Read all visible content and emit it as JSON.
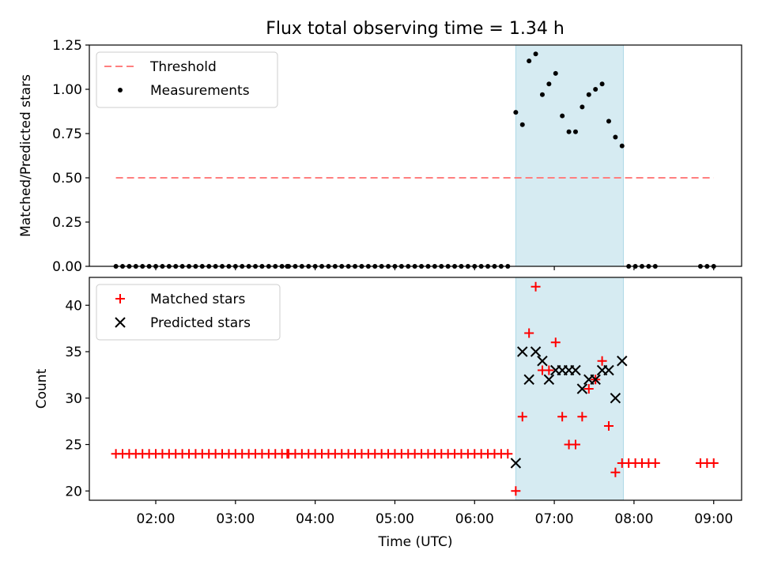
{
  "chart_data": {
    "title": "Flux total observing time = 1.34 h",
    "x_axis": {
      "label": "Time (UTC)",
      "ticks": [
        "02:00",
        "03:00",
        "04:00",
        "05:00",
        "06:00",
        "07:00",
        "08:00",
        "09:00"
      ],
      "range": [
        "01:10",
        "09:21"
      ]
    },
    "highlight_span": [
      "06:31",
      "07:52"
    ],
    "highlight_color": "#add8e6",
    "charts": [
      {
        "type": "scatter",
        "ylabel": "Matched/Predicted stars",
        "ylim": [
          0,
          1.25
        ],
        "yticks": [
          "0.00",
          "0.25",
          "0.50",
          "0.75",
          "1.00",
          "1.25"
        ],
        "legend_position": "top-left",
        "threshold": {
          "name": "Threshold",
          "value": 0.5,
          "x_range": [
            "01:30",
            "09:00"
          ],
          "color": "#ff7f7f",
          "style": "dashed"
        },
        "series": [
          {
            "name": "Measurements",
            "color": "#000000",
            "marker": "dot",
            "points": [
              [
                "01:30",
                0
              ],
              [
                "01:35",
                0
              ],
              [
                "01:40",
                0
              ],
              [
                "01:45",
                0
              ],
              [
                "01:50",
                0
              ],
              [
                "01:55",
                0
              ],
              [
                "02:00",
                0
              ],
              [
                "02:05",
                0
              ],
              [
                "02:10",
                0
              ],
              [
                "02:15",
                0
              ],
              [
                "02:20",
                0
              ],
              [
                "02:25",
                0
              ],
              [
                "02:30",
                0
              ],
              [
                "02:35",
                0
              ],
              [
                "02:40",
                0
              ],
              [
                "02:45",
                0
              ],
              [
                "02:50",
                0
              ],
              [
                "02:55",
                0
              ],
              [
                "03:00",
                0
              ],
              [
                "03:05",
                0
              ],
              [
                "03:10",
                0
              ],
              [
                "03:15",
                0
              ],
              [
                "03:20",
                0
              ],
              [
                "03:25",
                0
              ],
              [
                "03:30",
                0
              ],
              [
                "03:35",
                0
              ],
              [
                "03:39",
                0
              ],
              [
                "03:40",
                0
              ],
              [
                "03:45",
                0
              ],
              [
                "03:50",
                0
              ],
              [
                "03:55",
                0
              ],
              [
                "04:00",
                0
              ],
              [
                "04:05",
                0
              ],
              [
                "04:10",
                0
              ],
              [
                "04:15",
                0
              ],
              [
                "04:20",
                0
              ],
              [
                "04:25",
                0
              ],
              [
                "04:30",
                0
              ],
              [
                "04:35",
                0
              ],
              [
                "04:40",
                0
              ],
              [
                "04:45",
                0
              ],
              [
                "04:50",
                0
              ],
              [
                "04:55",
                0
              ],
              [
                "05:00",
                0
              ],
              [
                "05:05",
                0
              ],
              [
                "05:10",
                0
              ],
              [
                "05:15",
                0
              ],
              [
                "05:20",
                0
              ],
              [
                "05:25",
                0
              ],
              [
                "05:30",
                0
              ],
              [
                "05:35",
                0
              ],
              [
                "05:40",
                0
              ],
              [
                "05:45",
                0
              ],
              [
                "05:50",
                0
              ],
              [
                "05:55",
                0
              ],
              [
                "06:00",
                0
              ],
              [
                "06:05",
                0
              ],
              [
                "06:10",
                0
              ],
              [
                "06:15",
                0
              ],
              [
                "06:20",
                0
              ],
              [
                "06:25",
                0
              ],
              [
                "06:31",
                0.87
              ],
              [
                "06:36",
                0.8
              ],
              [
                "06:41",
                1.16
              ],
              [
                "06:46",
                1.2
              ],
              [
                "06:51",
                0.97
              ],
              [
                "06:56",
                1.03
              ],
              [
                "07:01",
                1.09
              ],
              [
                "07:06",
                0.85
              ],
              [
                "07:11",
                0.76
              ],
              [
                "07:16",
                0.76
              ],
              [
                "07:21",
                0.9
              ],
              [
                "07:26",
                0.97
              ],
              [
                "07:31",
                1.0
              ],
              [
                "07:36",
                1.03
              ],
              [
                "07:41",
                0.82
              ],
              [
                "07:46",
                0.73
              ],
              [
                "07:51",
                0.68
              ],
              [
                "07:56",
                0
              ],
              [
                "08:01",
                0
              ],
              [
                "08:06",
                0
              ],
              [
                "08:11",
                0
              ],
              [
                "08:16",
                0
              ],
              [
                "08:50",
                0
              ],
              [
                "08:55",
                0
              ],
              [
                "09:00",
                0
              ]
            ]
          }
        ]
      },
      {
        "type": "scatter",
        "ylabel": "Count",
        "ylim": [
          19,
          43
        ],
        "yticks": [
          "20",
          "25",
          "30",
          "35",
          "40"
        ],
        "legend_position": "top-left",
        "series": [
          {
            "name": "Matched stars",
            "color": "#ff0000",
            "marker": "plus",
            "points": [
              [
                "01:30",
                24
              ],
              [
                "01:35",
                24
              ],
              [
                "01:40",
                24
              ],
              [
                "01:45",
                24
              ],
              [
                "01:50",
                24
              ],
              [
                "01:55",
                24
              ],
              [
                "02:00",
                24
              ],
              [
                "02:05",
                24
              ],
              [
                "02:10",
                24
              ],
              [
                "02:15",
                24
              ],
              [
                "02:20",
                24
              ],
              [
                "02:25",
                24
              ],
              [
                "02:30",
                24
              ],
              [
                "02:35",
                24
              ],
              [
                "02:40",
                24
              ],
              [
                "02:45",
                24
              ],
              [
                "02:50",
                24
              ],
              [
                "02:55",
                24
              ],
              [
                "03:00",
                24
              ],
              [
                "03:05",
                24
              ],
              [
                "03:10",
                24
              ],
              [
                "03:15",
                24
              ],
              [
                "03:20",
                24
              ],
              [
                "03:25",
                24
              ],
              [
                "03:30",
                24
              ],
              [
                "03:35",
                24
              ],
              [
                "03:39",
                24
              ],
              [
                "03:40",
                24
              ],
              [
                "03:45",
                24
              ],
              [
                "03:50",
                24
              ],
              [
                "03:55",
                24
              ],
              [
                "04:00",
                24
              ],
              [
                "04:05",
                24
              ],
              [
                "04:10",
                24
              ],
              [
                "04:15",
                24
              ],
              [
                "04:20",
                24
              ],
              [
                "04:25",
                24
              ],
              [
                "04:30",
                24
              ],
              [
                "04:35",
                24
              ],
              [
                "04:40",
                24
              ],
              [
                "04:45",
                24
              ],
              [
                "04:50",
                24
              ],
              [
                "04:55",
                24
              ],
              [
                "05:00",
                24
              ],
              [
                "05:05",
                24
              ],
              [
                "05:10",
                24
              ],
              [
                "05:15",
                24
              ],
              [
                "05:20",
                24
              ],
              [
                "05:25",
                24
              ],
              [
                "05:30",
                24
              ],
              [
                "05:35",
                24
              ],
              [
                "05:40",
                24
              ],
              [
                "05:45",
                24
              ],
              [
                "05:50",
                24
              ],
              [
                "05:55",
                24
              ],
              [
                "06:00",
                24
              ],
              [
                "06:05",
                24
              ],
              [
                "06:10",
                24
              ],
              [
                "06:15",
                24
              ],
              [
                "06:20",
                24
              ],
              [
                "06:25",
                24
              ],
              [
                "06:31",
                20
              ],
              [
                "06:36",
                28
              ],
              [
                "06:41",
                37
              ],
              [
                "06:46",
                42
              ],
              [
                "06:51",
                33
              ],
              [
                "06:56",
                33
              ],
              [
                "07:01",
                36
              ],
              [
                "07:06",
                28
              ],
              [
                "07:11",
                25
              ],
              [
                "07:16",
                25
              ],
              [
                "07:21",
                28
              ],
              [
                "07:26",
                31
              ],
              [
                "07:31",
                32
              ],
              [
                "07:36",
                34
              ],
              [
                "07:41",
                27
              ],
              [
                "07:46",
                22
              ],
              [
                "07:51",
                23
              ],
              [
                "07:56",
                23
              ],
              [
                "08:01",
                23
              ],
              [
                "08:06",
                23
              ],
              [
                "08:11",
                23
              ],
              [
                "08:16",
                23
              ],
              [
                "08:50",
                23
              ],
              [
                "08:55",
                23
              ],
              [
                "09:00",
                23
              ]
            ]
          },
          {
            "name": "Predicted stars",
            "color": "#000000",
            "marker": "x",
            "points": [
              [
                "06:31",
                23
              ],
              [
                "06:36",
                35
              ],
              [
                "06:41",
                32
              ],
              [
                "06:46",
                35
              ],
              [
                "06:51",
                34
              ],
              [
                "06:56",
                32
              ],
              [
                "07:01",
                33
              ],
              [
                "07:06",
                33
              ],
              [
                "07:11",
                33
              ],
              [
                "07:16",
                33
              ],
              [
                "07:21",
                31
              ],
              [
                "07:26",
                32
              ],
              [
                "07:31",
                32
              ],
              [
                "07:36",
                33
              ],
              [
                "07:41",
                33
              ],
              [
                "07:46",
                30
              ],
              [
                "07:51",
                34
              ]
            ]
          }
        ]
      }
    ]
  }
}
